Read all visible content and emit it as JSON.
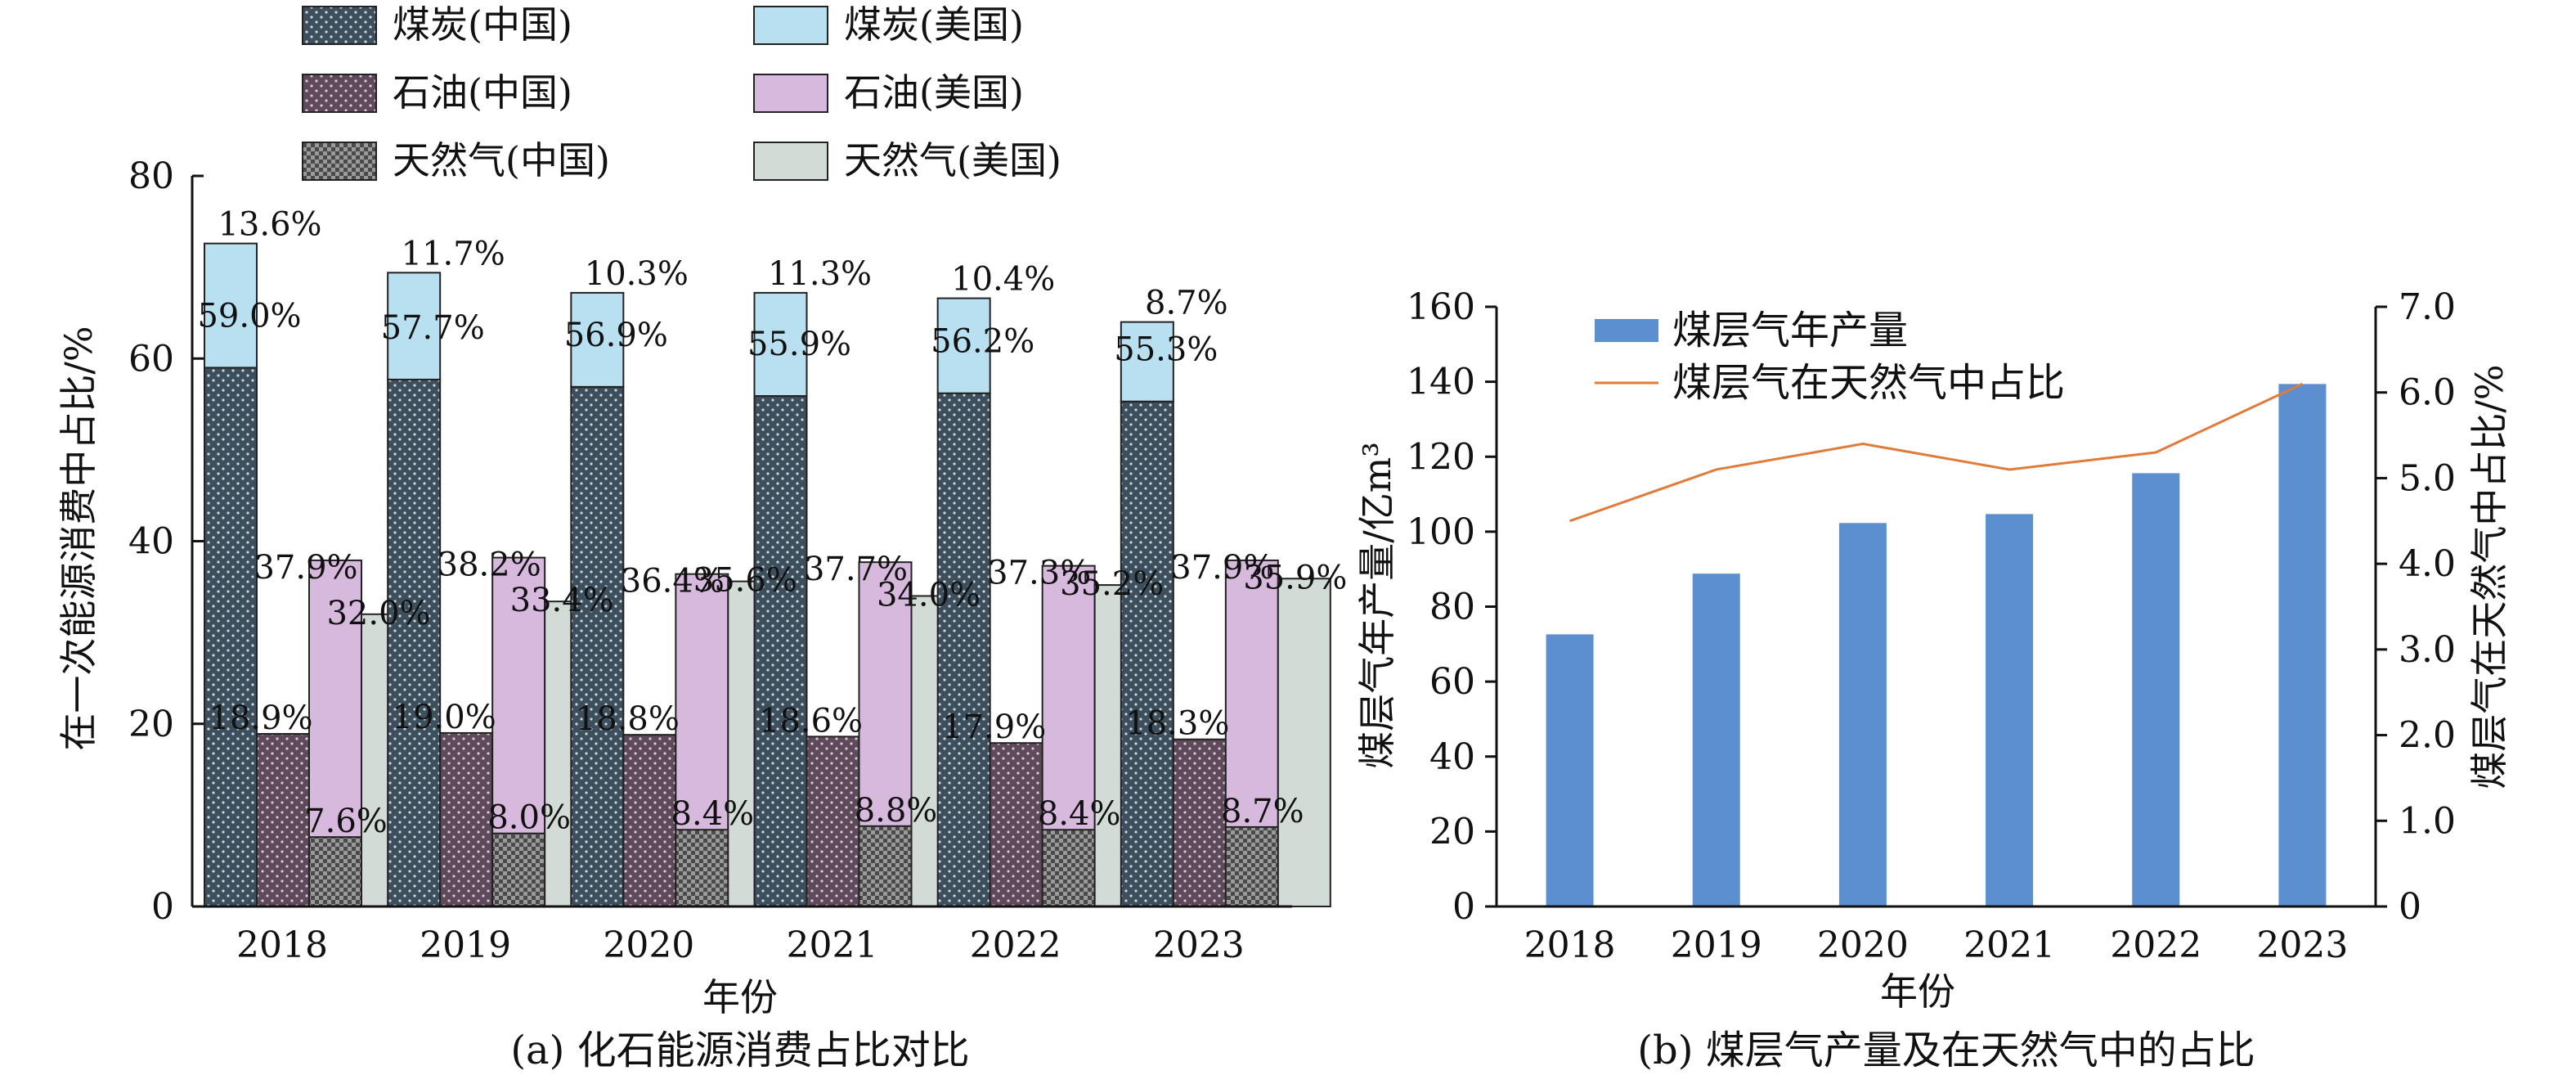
{
  "chart_data": [
    {
      "type": "bar",
      "caption": "(a) 化石能源消费占比对比",
      "xlabel": "年份",
      "ylabel": "在一次能源消费中占比/%",
      "ylim": [
        0,
        80
      ],
      "yticks": [
        "0",
        "20",
        "40",
        "60",
        "80"
      ],
      "categories": [
        "2018",
        "2019",
        "2020",
        "2021",
        "2022",
        "2023"
      ],
      "legend_position": "top",
      "series": [
        {
          "name": "煤炭(中国)",
          "values": [
            59.0,
            57.7,
            56.9,
            55.9,
            56.2,
            55.3
          ],
          "labels": [
            "59.0%",
            "57.7%",
            "56.9%",
            "55.9%",
            "56.2%",
            "55.3%"
          ],
          "color": "#3d4f5c",
          "pattern": "dots"
        },
        {
          "name": "石油(中国)",
          "values": [
            18.9,
            19.0,
            18.8,
            18.6,
            17.9,
            18.3
          ],
          "labels": [
            "18.9%",
            "19.0%",
            "18.8%",
            "18.6%",
            "17.9%",
            "18.3%"
          ],
          "color": "#5e4a5a",
          "pattern": "dots"
        },
        {
          "name": "天然气(中国)",
          "values": [
            7.6,
            8.0,
            8.4,
            8.8,
            8.4,
            8.7
          ],
          "labels": [
            "7.6%",
            "8.0%",
            "8.4%",
            "8.8%",
            "8.4%",
            "8.7%"
          ],
          "color": "#5a5a5a",
          "pattern": "checker"
        },
        {
          "name": "煤炭(美国)",
          "values": [
            13.6,
            11.7,
            10.3,
            11.3,
            10.4,
            8.7
          ],
          "labels": [
            "13.6%",
            "11.7%",
            "10.3%",
            "11.3%",
            "10.4%",
            "8.7%"
          ],
          "color": "#b9e0f0",
          "pattern": "none"
        },
        {
          "name": "石油(美国)",
          "values": [
            37.9,
            38.2,
            36.4,
            37.7,
            37.3,
            37.9
          ],
          "labels": [
            "37.9%",
            "38.2%",
            "36.4%",
            "37.7%",
            "37.3%",
            "37.9%"
          ],
          "color": "#d6b9dc",
          "pattern": "none"
        },
        {
          "name": "天然气(美国)",
          "values": [
            32.0,
            33.4,
            35.6,
            34.0,
            35.2,
            35.9
          ],
          "labels": [
            "32.0%",
            "33.4%",
            "35.6%",
            "34.0%",
            "35.2%",
            "35.9%"
          ],
          "color": "#d3dbd7",
          "pattern": "none"
        }
      ]
    },
    {
      "type": "bar",
      "caption": "(b) 煤层气产量及在天然气中的占比",
      "xlabel": "年份",
      "ylabel": "煤层气年产量/亿m³",
      "ylabel_right": "煤层气在天然气中占比/%",
      "ylim": [
        0,
        160
      ],
      "yticks": [
        "0",
        "20",
        "40",
        "60",
        "80",
        "100",
        "120",
        "140",
        "160"
      ],
      "ylim_right": [
        0,
        7.0
      ],
      "yticks_right": [
        "0",
        "1.0",
        "2.0",
        "3.0",
        "4.0",
        "5.0",
        "6.0",
        "7.0"
      ],
      "categories": [
        "2018",
        "2019",
        "2020",
        "2021",
        "2022",
        "2023"
      ],
      "legend_position": "top-left",
      "series": [
        {
          "name": "煤层气年产量",
          "type": "bar",
          "axis": "left",
          "values": [
            72.6,
            88.8,
            102.3,
            104.7,
            115.6,
            139.4
          ],
          "color": "#5b8fd0"
        },
        {
          "name": "煤层气在天然气中占比",
          "type": "line",
          "axis": "right",
          "values": [
            4.5,
            5.1,
            5.4,
            5.1,
            5.3,
            6.1
          ],
          "color": "#e07b39"
        }
      ]
    }
  ]
}
